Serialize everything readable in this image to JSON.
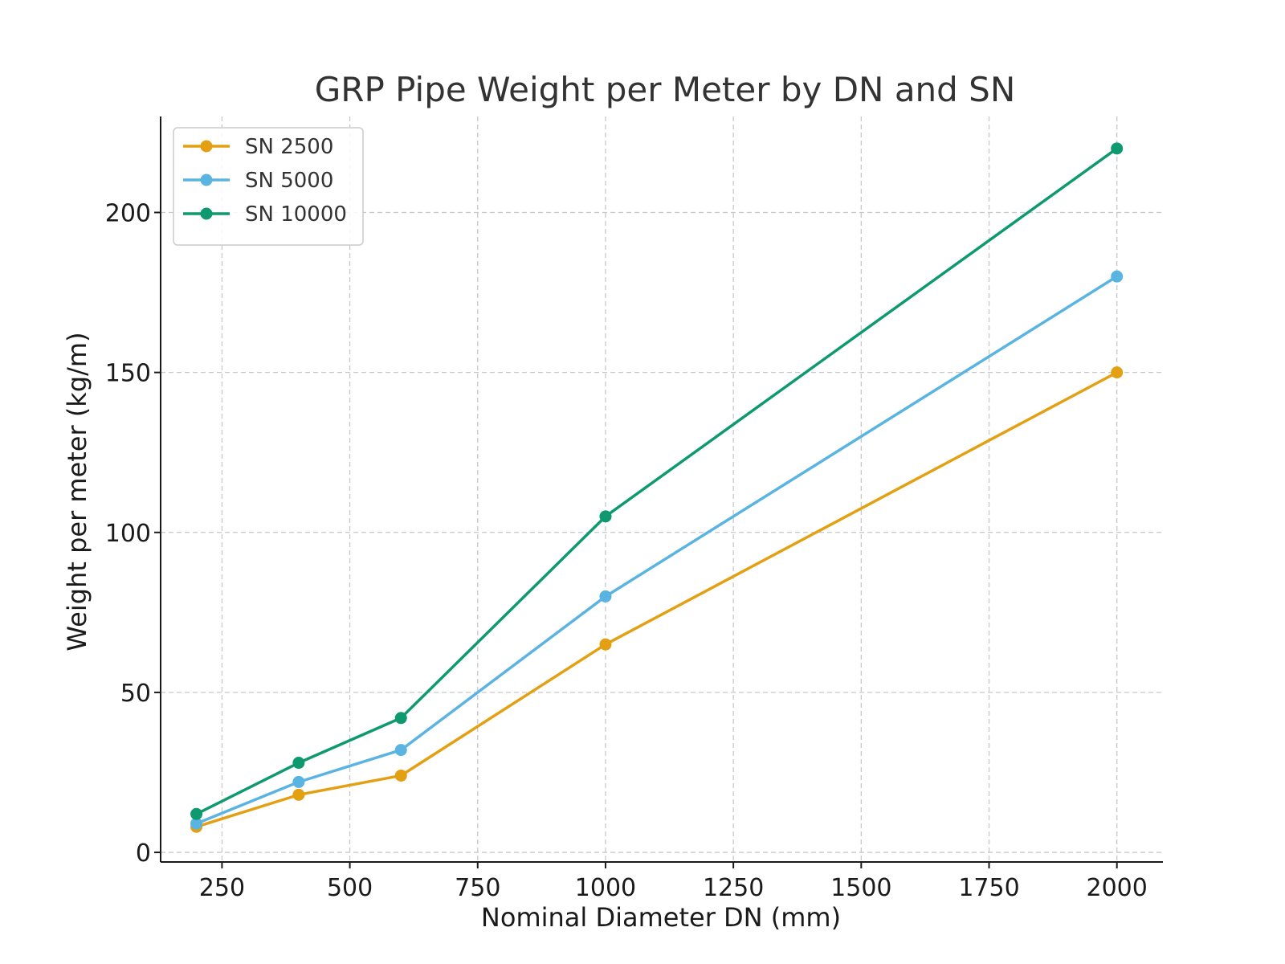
{
  "chart_data": {
    "type": "line",
    "title": "GRP Pipe Weight per Meter by DN and SN",
    "xlabel": "Nominal Diameter DN (mm)",
    "ylabel": "Weight per meter (kg/m)",
    "x": [
      200,
      400,
      600,
      1000,
      2000
    ],
    "xlim": [
      130,
      2090
    ],
    "ylim": [
      -3,
      230
    ],
    "xticks": [
      250,
      500,
      750,
      1000,
      1250,
      1500,
      1750,
      2000
    ],
    "yticks": [
      0,
      50,
      100,
      150,
      200
    ],
    "grid": true,
    "legend_position": "top-left",
    "series": [
      {
        "name": "SN 2500",
        "color": "#E2A012",
        "values": [
          8,
          18,
          24,
          65,
          150
        ]
      },
      {
        "name": "SN 5000",
        "color": "#5AB4E2",
        "values": [
          9,
          22,
          32,
          80,
          180
        ]
      },
      {
        "name": "SN 10000",
        "color": "#0E9A6E",
        "values": [
          12,
          28,
          42,
          105,
          220
        ]
      }
    ]
  }
}
